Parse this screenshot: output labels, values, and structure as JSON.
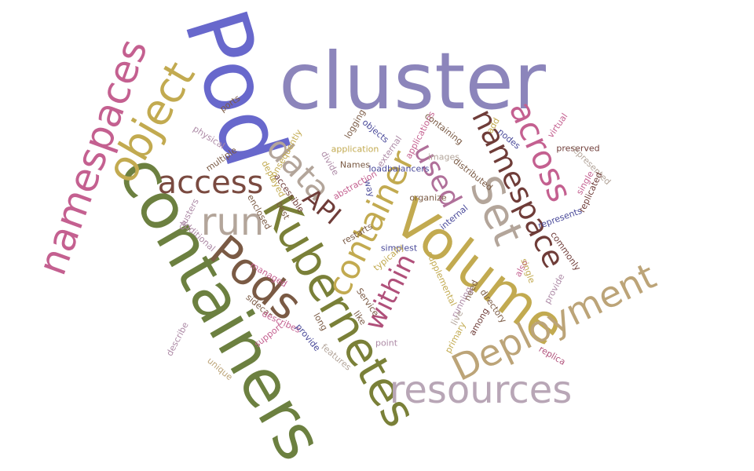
{
  "palette": {
    "periwinkle": "#8c85bb",
    "royal": "#6868cc",
    "olive": "#6c8040",
    "gold": "#c2aa50",
    "khaki": "#bca478",
    "taupe": "#b3a59a",
    "brown": "#6f3c38",
    "rose": "#c46090",
    "mauve": "#ad8aa6",
    "umber": "#7a5a44",
    "navy": "#4a4a9a"
  },
  "words": [
    {
      "text": "cluster",
      "color": "#8c85bb"
    },
    {
      "text": "Pod",
      "color": "#6868cc"
    },
    {
      "text": "containers",
      "color": "#6c8040"
    },
    {
      "text": "Kubernetes",
      "color": "#7a8038"
    },
    {
      "text": "Volume",
      "color": "#c2aa50"
    },
    {
      "text": "resources",
      "color": "#b8a6b6"
    },
    {
      "text": "Deployment",
      "color": "#bca478"
    },
    {
      "text": "namespaces",
      "color": "#c46090"
    },
    {
      "text": "Pods",
      "color": "#7a5a44"
    },
    {
      "text": "object",
      "color": "#c2aa50"
    },
    {
      "text": "namespace",
      "color": "#6f3c38"
    },
    {
      "text": "Set",
      "color": "#b3a59a"
    },
    {
      "text": "across",
      "color": "#c46090"
    },
    {
      "text": "run",
      "color": "#b3a59a"
    },
    {
      "text": "access",
      "color": "#7a4a40"
    },
    {
      "text": "data",
      "color": "#b3a59a"
    },
    {
      "text": "used",
      "color": "#b0709a"
    },
    {
      "text": "container",
      "color": "#c2aa50"
    },
    {
      "text": "within",
      "color": "#b0507a"
    },
    {
      "text": "API",
      "color": "#6f3c38"
    },
    {
      "text": "preserved",
      "color": "#6f3c38"
    },
    {
      "text": "ports",
      "color": "#7a5a44"
    },
    {
      "text": "physical",
      "color": "#ad8aa6"
    },
    {
      "text": "multiple",
      "color": "#7a5a44"
    },
    {
      "text": "consequently",
      "color": "#c2aa50"
    },
    {
      "text": "logging",
      "color": "#7a5a44"
    },
    {
      "text": "objects",
      "color": "#4a4a9a"
    },
    {
      "text": "application",
      "color": "#c2aa50"
    },
    {
      "text": "external",
      "color": "#ad8aa6"
    },
    {
      "text": "applications",
      "color": "#c46090"
    },
    {
      "text": "containing",
      "color": "#7a5a44"
    },
    {
      "text": "images",
      "color": "#b3a59a"
    },
    {
      "text": "nodes",
      "color": "#4a4a9a"
    },
    {
      "text": "add",
      "color": "#c2aa50"
    },
    {
      "text": "virtual",
      "color": "#c46090"
    },
    {
      "text": "represented",
      "color": "#b3a59a"
    },
    {
      "text": "single",
      "color": "#c46090"
    },
    {
      "text": "replicated",
      "color": "#6f3c38"
    },
    {
      "text": "distributed",
      "color": "#7a5a44"
    },
    {
      "text": "loadbalancers",
      "color": "#4a4a9a"
    },
    {
      "text": "Names",
      "color": "#7a5a44"
    },
    {
      "text": "divide",
      "color": "#ad8aa6"
    },
    {
      "text": "way",
      "color": "#4a4a9a"
    },
    {
      "text": "abstraction",
      "color": "#c46090"
    },
    {
      "text": "organize",
      "color": "#7a5a44"
    },
    {
      "text": "represents",
      "color": "#4a4a9a"
    },
    {
      "text": "commonly",
      "color": "#6f3c38"
    },
    {
      "text": "internal",
      "color": "#4a4a9a"
    },
    {
      "text": "restarts",
      "color": "#7a5a44"
    },
    {
      "text": "simplest",
      "color": "#4a4a9a"
    },
    {
      "text": "typically",
      "color": "#c2aa50"
    },
    {
      "text": "supplemental",
      "color": "#c2aa50"
    },
    {
      "text": "need",
      "color": "#7a5a44"
    },
    {
      "text": "running",
      "color": "#ad8aa6"
    },
    {
      "text": "directory",
      "color": "#7a5a44"
    },
    {
      "text": "among",
      "color": "#6f3c38"
    },
    {
      "text": "primary",
      "color": "#c2aa50"
    },
    {
      "text": "live",
      "color": "#b3a59a"
    },
    {
      "text": "also",
      "color": "#c46090"
    },
    {
      "text": "provide",
      "color": "#ad8aa6"
    },
    {
      "text": "replica",
      "color": "#b0507a"
    },
    {
      "text": "managed",
      "color": "#c46090"
    },
    {
      "text": "sidecar",
      "color": "#7a5a44"
    },
    {
      "text": "describes",
      "color": "#c46090"
    },
    {
      "text": "support",
      "color": "#c46090"
    },
    {
      "text": "provide",
      "color": "#4a4a9a"
    },
    {
      "text": "long",
      "color": "#7a5a44"
    },
    {
      "text": "features",
      "color": "#b3a59a"
    },
    {
      "text": "Service",
      "color": "#7a5a44"
    },
    {
      "text": "like",
      "color": "#7a5a44"
    },
    {
      "text": "point",
      "color": "#ad8aa6"
    },
    {
      "text": "unique",
      "color": "#bca478"
    },
    {
      "text": "describe",
      "color": "#ad8aa6"
    },
    {
      "text": "clusters",
      "color": "#ad8aa6"
    },
    {
      "text": "additional",
      "color": "#ad8aa6"
    },
    {
      "text": "enclosed",
      "color": "#7a5a44"
    },
    {
      "text": "deployed",
      "color": "#c2aa50"
    },
    {
      "text": "accessible",
      "color": "#6f3c38"
    },
    {
      "text": "best",
      "color": "#7a5a44"
    },
    {
      "text": "single",
      "color": "#c2aa50"
    }
  ]
}
